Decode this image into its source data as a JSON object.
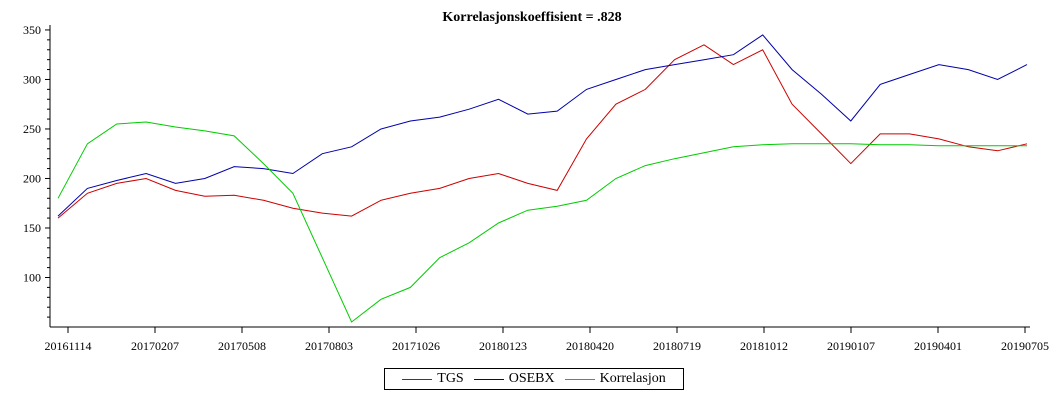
{
  "chart_data": {
    "type": "line",
    "title": "Korrelasjonskoeffisient = .828",
    "xlabel": "",
    "ylabel": "",
    "ylim": [
      50,
      355
    ],
    "yticks": [
      100,
      150,
      200,
      250,
      300,
      350
    ],
    "x_tick_labels": [
      "20161114",
      "20170207",
      "20170508",
      "20170803",
      "20171026",
      "20180123",
      "20180420",
      "20180719",
      "20181012",
      "20190107",
      "20190401",
      "20190705"
    ],
    "x": [
      "20161114",
      "20161215",
      "20170115",
      "20170207",
      "20170315",
      "20170415",
      "20170508",
      "20170601",
      "20170701",
      "20170803",
      "20170901",
      "20171001",
      "20171026",
      "20171201",
      "20180101",
      "20180123",
      "20180301",
      "20180401",
      "20180420",
      "20180515",
      "20180615",
      "20180719",
      "20180815",
      "20180915",
      "20181012",
      "20181101",
      "20181201",
      "20190107",
      "20190201",
      "20190301",
      "20190401",
      "20190501",
      "20190601",
      "20190705"
    ],
    "series": [
      {
        "name": "TGS",
        "color": "#cc0000",
        "values": [
          160,
          185,
          195,
          200,
          188,
          182,
          183,
          178,
          170,
          165,
          162,
          178,
          185,
          190,
          200,
          205,
          195,
          188,
          240,
          275,
          290,
          320,
          335,
          315,
          330,
          275,
          245,
          215,
          245,
          245,
          240,
          232,
          228,
          235
        ]
      },
      {
        "name": "OSEBX",
        "color": "#0000aa",
        "values": [
          162,
          190,
          198,
          205,
          195,
          200,
          212,
          210,
          205,
          225,
          232,
          250,
          258,
          262,
          270,
          280,
          265,
          268,
          290,
          300,
          310,
          315,
          320,
          325,
          345,
          310,
          285,
          258,
          295,
          305,
          315,
          310,
          300,
          315
        ]
      },
      {
        "name": "Korrelasjon",
        "color": "#00cc00",
        "values": [
          180,
          235,
          255,
          257,
          252,
          248,
          243,
          215,
          185,
          120,
          55,
          78,
          90,
          120,
          135,
          155,
          168,
          172,
          178,
          200,
          213,
          220,
          226,
          232,
          234,
          235,
          235,
          235,
          234,
          234,
          233,
          233,
          233,
          233
        ]
      }
    ],
    "grid": false,
    "legend": "bottom-center"
  },
  "legend": {
    "items": [
      {
        "label": "TGS",
        "color": "#cc0000"
      },
      {
        "label": "OSEBX",
        "color": "#0000aa"
      },
      {
        "label": "Korrelasjon",
        "color": "#00cc00"
      }
    ]
  }
}
